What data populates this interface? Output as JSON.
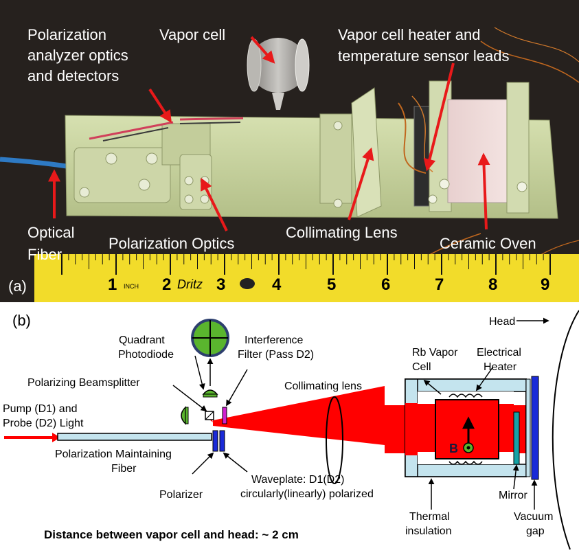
{
  "panel_a": {
    "tag": "(a)",
    "labels": {
      "polarization_analyzer_1": "Polarization",
      "polarization_analyzer_2": "analyzer optics",
      "polarization_analyzer_3": "and detectors",
      "vapor_cell": "Vapor cell",
      "heater_leads_1": "Vapor cell heater and",
      "heater_leads_2": "temperature sensor leads",
      "optical_fiber_1": "Optical",
      "optical_fiber_2": "Fiber",
      "polarization_optics": "Polarization Optics",
      "collimating_lens": "Collimating Lens",
      "ceramic_oven": "Ceramic Oven"
    },
    "ruler": {
      "numbers": [
        "1",
        "2",
        "3",
        "4",
        "5",
        "6",
        "7",
        "8",
        "9"
      ],
      "inch_mark": "INCH",
      "brand": "Dritz"
    },
    "colors": {
      "background": "#2b2522",
      "board": "#c8d3a0",
      "arrow": "#e8191a",
      "ruler": "#f2dc2a"
    }
  },
  "panel_b": {
    "tag": "(b)",
    "labels": {
      "head": "Head",
      "quadrant_1": "Quadrant",
      "quadrant_2": "Photodiode",
      "interference_1": "Interference",
      "interference_2": "Filter (Pass D2)",
      "beamsplitter": "Polarizing Beamsplitter",
      "pump_1": "Pump (D1) and",
      "pump_2": "Probe (D2) Light",
      "collimating_lens": "Collimating lens",
      "rb_cell_1": "Rb Vapor",
      "rb_cell_2": "Cell",
      "heater_1": "Electrical",
      "heater_2": "Heater",
      "fiber_1": "Polarization Maintaining",
      "fiber_2": "Fiber",
      "polarizer": "Polarizer",
      "waveplate_1": "Waveplate: D1(D2)",
      "waveplate_2": "circularly(linearly) polarized",
      "mirror": "Mirror",
      "thermal_1": "Thermal",
      "thermal_2": "insulation",
      "vacuum_1": "Vacuum",
      "vacuum_2": "gap",
      "b_field": "B",
      "caption": "Distance between vapor cell and head: ~ 2 cm"
    },
    "colors": {
      "beam": "#ff0000",
      "insulation": "#c4e4ee",
      "photodiode": "#5ab52e",
      "waveplate": "#1a2ad8"
    }
  }
}
